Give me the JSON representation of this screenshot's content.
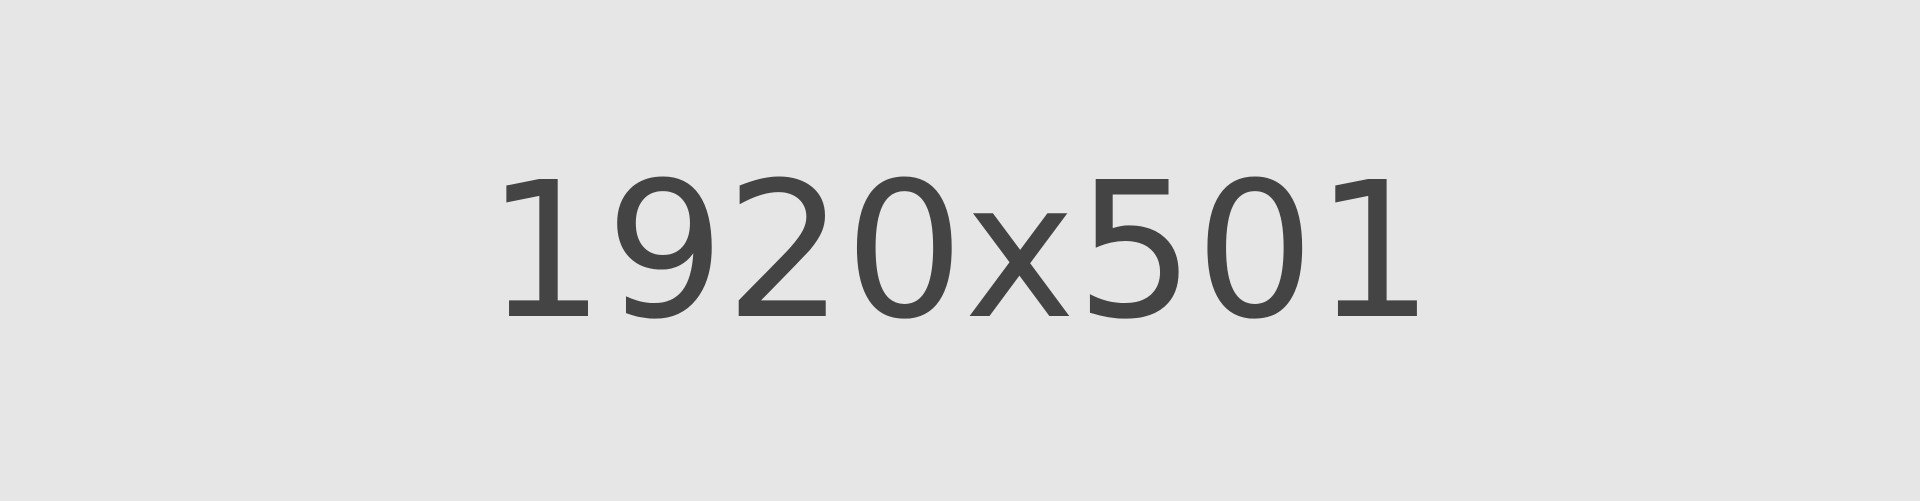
{
  "placeholder": {
    "label": "1920x501",
    "background_color": "#e6e6e6",
    "text_color": "#444444"
  }
}
